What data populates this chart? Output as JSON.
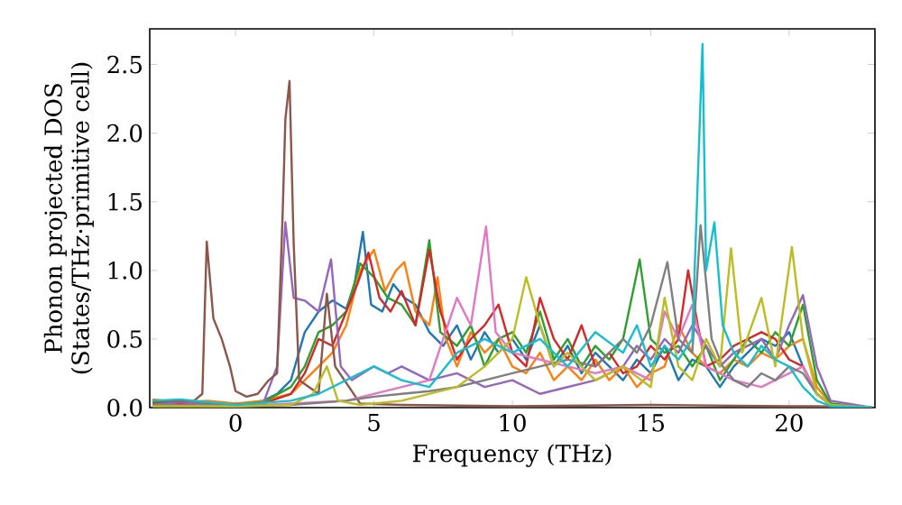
{
  "chart_data": {
    "type": "line",
    "xlabel": "Frequency (THz)",
    "ylabel": "Phonon projected DOS (States/THz·primitive cell)",
    "xlim": [
      -3.1,
      23.1
    ],
    "ylim": [
      0,
      2.76
    ],
    "xticks": [
      0,
      5,
      10,
      15,
      20
    ],
    "yticks": [
      {
        "value": 0,
        "label": "0.0"
      },
      {
        "value": 0.5,
        "label": "0.5"
      },
      {
        "value": 1,
        "label": "1.0"
      },
      {
        "value": 1.5,
        "label": "1.5"
      },
      {
        "value": 2,
        "label": "2.0"
      },
      {
        "value": 2.5,
        "label": "2.5"
      }
    ],
    "grid": false,
    "series": [
      {
        "color": "#1f77b4",
        "x": [
          -3,
          -2,
          -1,
          0,
          1,
          1.5,
          2,
          2.5,
          3,
          3.5,
          4,
          4.3,
          4.6,
          4.9,
          5.3,
          5.7,
          6.1,
          6.5,
          7,
          7.5,
          8,
          8.5,
          9,
          9.5,
          10,
          10.5,
          11,
          11.5,
          12,
          12.5,
          13,
          13.5,
          14,
          14.5,
          15,
          15.5,
          16,
          16.5,
          17,
          17.5,
          18,
          18.5,
          19,
          19.5,
          20,
          20.5,
          21,
          21.5,
          23
        ],
        "values": [
          0.03,
          0.05,
          0.03,
          0.02,
          0.05,
          0.1,
          0.2,
          0.55,
          0.7,
          0.78,
          0.72,
          0.9,
          1.28,
          0.75,
          0.7,
          0.9,
          0.8,
          0.75,
          0.55,
          0.45,
          0.6,
          0.35,
          0.55,
          0.4,
          0.5,
          0.35,
          0.6,
          0.3,
          0.45,
          0.25,
          0.4,
          0.3,
          0.2,
          0.35,
          0.25,
          0.45,
          0.2,
          0.35,
          0.3,
          0.15,
          0.3,
          0.4,
          0.5,
          0.45,
          0.55,
          0.3,
          0.1,
          0.02,
          0
        ]
      },
      {
        "color": "#ff7f0e",
        "x": [
          -3,
          -2,
          -1,
          0,
          1,
          2,
          2.5,
          3,
          3.5,
          4,
          4.5,
          5,
          5.4,
          5.8,
          6.1,
          6.5,
          7,
          7.3,
          7.6,
          8,
          8.5,
          9,
          9.5,
          10,
          10.5,
          11,
          11.5,
          12,
          12.5,
          13,
          13.5,
          14,
          14.5,
          15,
          15.5,
          16,
          16.5,
          17,
          17.5,
          18,
          18.5,
          19,
          19.5,
          20,
          20.5,
          21,
          21.5,
          23
        ],
        "values": [
          0.06,
          0.04,
          0.05,
          0.03,
          0.05,
          0.1,
          0.2,
          0.3,
          0.4,
          0.6,
          1.0,
          1.15,
          0.85,
          1.0,
          1.06,
          0.7,
          0.6,
          0.95,
          0.5,
          0.3,
          0.55,
          0.4,
          0.5,
          0.3,
          0.25,
          0.4,
          0.2,
          0.3,
          0.2,
          0.35,
          0.2,
          0.3,
          0.15,
          0.25,
          0.3,
          0.6,
          0.4,
          0.3,
          0.25,
          0.35,
          0.3,
          0.4,
          0.35,
          0.45,
          0.5,
          0.15,
          0.03,
          0
        ]
      },
      {
        "color": "#2ca02c",
        "x": [
          -3,
          -1,
          0,
          1,
          2,
          2.5,
          3,
          3.5,
          4,
          4.5,
          5,
          5.5,
          6,
          6.5,
          7,
          7.4,
          8,
          8.5,
          9,
          9.5,
          10,
          10.5,
          11,
          11.5,
          12,
          12.5,
          13,
          13.5,
          14,
          14.6,
          15,
          15.5,
          16,
          16.5,
          17,
          17.5,
          18,
          18.5,
          19,
          19.5,
          20,
          20.5,
          21,
          21.5,
          23
        ],
        "values": [
          0.04,
          0.03,
          0.02,
          0.04,
          0.15,
          0.3,
          0.55,
          0.6,
          0.7,
          1.05,
          0.95,
          0.8,
          0.75,
          0.6,
          1.22,
          0.55,
          0.45,
          0.6,
          0.3,
          0.5,
          0.55,
          0.4,
          0.7,
          0.35,
          0.5,
          0.3,
          0.45,
          0.35,
          0.5,
          1.08,
          0.5,
          0.4,
          0.45,
          0.3,
          0.45,
          0.2,
          0.35,
          0.5,
          0.4,
          0.55,
          0.45,
          0.75,
          0.2,
          0.03,
          0
        ]
      },
      {
        "color": "#d62728",
        "x": [
          -3,
          -1,
          0,
          1,
          2,
          2.5,
          3,
          3.5,
          4,
          4.4,
          4.8,
          5.2,
          5.6,
          6,
          6.5,
          7,
          7.4,
          8,
          8.5,
          9,
          9.5,
          10,
          10.5,
          11,
          11.5,
          12,
          12.5,
          13,
          13.5,
          14,
          14.5,
          15,
          15.5,
          16,
          16.35,
          16.7,
          17,
          17.5,
          18,
          18.5,
          19,
          19.5,
          20,
          20.5,
          21,
          21.5,
          23
        ],
        "values": [
          0.03,
          0.02,
          0.02,
          0.03,
          0.1,
          0.25,
          0.5,
          0.45,
          0.7,
          0.9,
          1.13,
          0.8,
          0.7,
          0.85,
          0.6,
          1.15,
          0.7,
          0.35,
          0.5,
          0.6,
          0.75,
          0.4,
          0.3,
          0.8,
          0.5,
          0.35,
          0.6,
          0.3,
          0.4,
          0.25,
          0.3,
          0.45,
          0.35,
          0.5,
          1.0,
          0.6,
          0.3,
          0.35,
          0.45,
          0.5,
          0.55,
          0.5,
          0.35,
          0.3,
          0.1,
          0.02,
          0
        ]
      },
      {
        "color": "#9467bd",
        "x": [
          -3,
          -2,
          -1,
          0,
          1,
          1.5,
          1.8,
          2.1,
          2.5,
          3,
          3.45,
          3.8,
          4.2,
          5,
          5.5,
          6,
          7,
          8,
          9,
          10,
          11,
          12,
          13,
          14,
          14.5,
          15,
          15.5,
          16,
          16.5,
          17,
          17.5,
          18,
          18.5,
          19,
          19.5,
          20,
          20.5,
          21,
          21.5,
          23
        ],
        "values": [
          0.02,
          0.04,
          0.02,
          0.01,
          0.03,
          0.3,
          1.35,
          0.8,
          0.78,
          0.7,
          1.08,
          0.3,
          0.2,
          0.3,
          0.25,
          0.3,
          0.2,
          0.25,
          0.15,
          0.2,
          0.1,
          0.15,
          0.2,
          0.3,
          0.45,
          0.35,
          0.5,
          0.4,
          0.6,
          0.45,
          0.3,
          0.4,
          0.45,
          0.5,
          0.35,
          0.6,
          0.82,
          0.3,
          0.05,
          0
        ]
      },
      {
        "color": "#8c564b",
        "x": [
          -3,
          -2,
          -1.5,
          -1.2,
          -1.04,
          -0.8,
          -0.5,
          -0.2,
          0,
          0.4,
          0.8,
          1.2,
          1.5,
          1.7,
          1.8,
          1.95,
          2.1,
          2.3,
          3,
          3.3,
          3.6,
          4.5,
          6,
          10,
          15,
          20,
          21,
          23
        ],
        "values": [
          0.05,
          0.05,
          0.05,
          0.1,
          1.21,
          0.65,
          0.5,
          0.3,
          0.12,
          0.08,
          0.1,
          0.2,
          0.25,
          1.4,
          2.1,
          2.38,
          1.2,
          0.2,
          0.1,
          0.83,
          0.3,
          0.03,
          0.02,
          0.01,
          0.02,
          0.01,
          0.01,
          0
        ]
      },
      {
        "color": "#e377c2",
        "x": [
          -3,
          0,
          2,
          4,
          5,
          6,
          7,
          7.5,
          8,
          8.5,
          9.05,
          9.4,
          10,
          11,
          12,
          13,
          14,
          15,
          15.5,
          16,
          16.5,
          17,
          18,
          19,
          20,
          20.5,
          21,
          21.5,
          23
        ],
        "values": [
          0.02,
          0.01,
          0.03,
          0.05,
          0.1,
          0.15,
          0.2,
          0.5,
          0.8,
          0.6,
          1.32,
          0.55,
          0.4,
          0.35,
          0.3,
          0.25,
          0.3,
          0.2,
          0.7,
          0.5,
          0.75,
          0.3,
          0.2,
          0.15,
          0.25,
          0.3,
          0.1,
          0.02,
          0
        ]
      },
      {
        "color": "#7f7f7f",
        "x": [
          -3,
          0,
          2,
          4,
          5,
          6,
          7,
          8,
          9,
          10,
          11,
          12,
          13,
          14,
          14.5,
          15,
          15.6,
          16,
          16.5,
          16.8,
          17.2,
          17.6,
          18,
          18.5,
          19,
          19.5,
          20,
          20.5,
          21,
          21.5,
          23
        ],
        "values": [
          0.02,
          0.01,
          0.02,
          0.05,
          0.08,
          0.1,
          0.12,
          0.15,
          0.2,
          0.25,
          0.3,
          0.35,
          0.3,
          0.5,
          0.4,
          0.6,
          1.06,
          0.5,
          0.4,
          1.33,
          0.5,
          0.3,
          0.2,
          0.15,
          0.25,
          0.2,
          0.3,
          0.25,
          0.1,
          0.02,
          0
        ]
      },
      {
        "color": "#bcbd22",
        "x": [
          -3,
          0,
          2,
          2.8,
          3.3,
          3.7,
          4.5,
          6,
          7,
          8,
          9,
          10,
          10.5,
          11,
          11.5,
          12,
          13,
          14,
          15,
          15.5,
          16,
          16.5,
          17,
          17.5,
          17.9,
          18.3,
          19,
          19.5,
          20.1,
          20.5,
          21,
          21.5,
          23
        ],
        "values": [
          0.01,
          0.01,
          0.02,
          0.1,
          0.3,
          0.05,
          0.02,
          0.05,
          0.1,
          0.15,
          0.3,
          0.5,
          0.95,
          0.6,
          0.3,
          0.4,
          0.2,
          0.3,
          0.15,
          0.8,
          0.3,
          0.2,
          0.5,
          0.3,
          1.16,
          0.4,
          0.8,
          0.3,
          1.17,
          0.5,
          0.1,
          0.02,
          0
        ]
      },
      {
        "color": "#17becf",
        "x": [
          -3,
          -2,
          0,
          2,
          3,
          4,
          5,
          6,
          7,
          8,
          9,
          10,
          11,
          12,
          13,
          14,
          14.5,
          15,
          15.5,
          16,
          16.5,
          16.87,
          17.0,
          17.3,
          17.6,
          18,
          18.5,
          19,
          19.5,
          20,
          20.5,
          21,
          21.5,
          23
        ],
        "values": [
          0.05,
          0.06,
          0.02,
          0.05,
          0.1,
          0.2,
          0.3,
          0.2,
          0.15,
          0.4,
          0.5,
          0.4,
          0.5,
          0.3,
          0.55,
          0.4,
          0.6,
          0.3,
          0.45,
          0.35,
          0.5,
          2.65,
          1.0,
          1.35,
          0.6,
          0.4,
          0.3,
          0.45,
          0.35,
          0.3,
          0.15,
          0.05,
          0.01,
          0
        ]
      }
    ]
  }
}
